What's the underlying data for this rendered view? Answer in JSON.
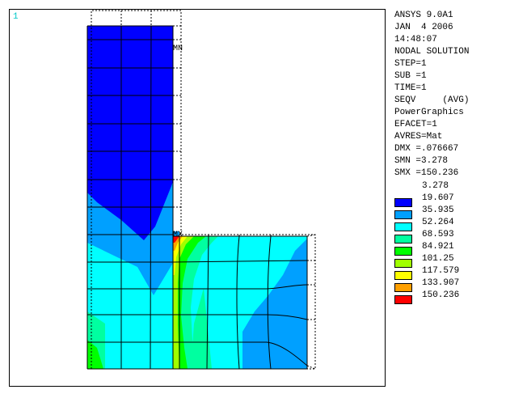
{
  "window_number": "1",
  "markers": {
    "mn": "MN",
    "mx": "MX"
  },
  "info_lines": [
    "ANSYS 9.0A1",
    "JAN  4 2006",
    "14:48:07",
    "NODAL SOLUTION",
    "STEP=1",
    "SUB =1",
    "TIME=1",
    "SEQV     (AVG)",
    "PowerGraphics",
    "EFACET=1",
    "AVRES=Mat",
    "DMX =.076667",
    "SMN =3.278",
    "SMX =150.236"
  ],
  "legend": {
    "min_label": "3.278",
    "bands": [
      {
        "label": "19.607",
        "color": "#0000ff"
      },
      {
        "label": "35.935",
        "color": "#00a0ff"
      },
      {
        "label": "52.264",
        "color": "#00ffff"
      },
      {
        "label": "68.593",
        "color": "#00ffa0"
      },
      {
        "label": "84.921",
        "color": "#00ff00"
      },
      {
        "label": "101.25",
        "color": "#a0ff00"
      },
      {
        "label": "117.579",
        "color": "#ffff00"
      },
      {
        "label": "133.907",
        "color": "#ffa000"
      },
      {
        "label": "150.236",
        "color": "#ff0000"
      }
    ]
  }
}
